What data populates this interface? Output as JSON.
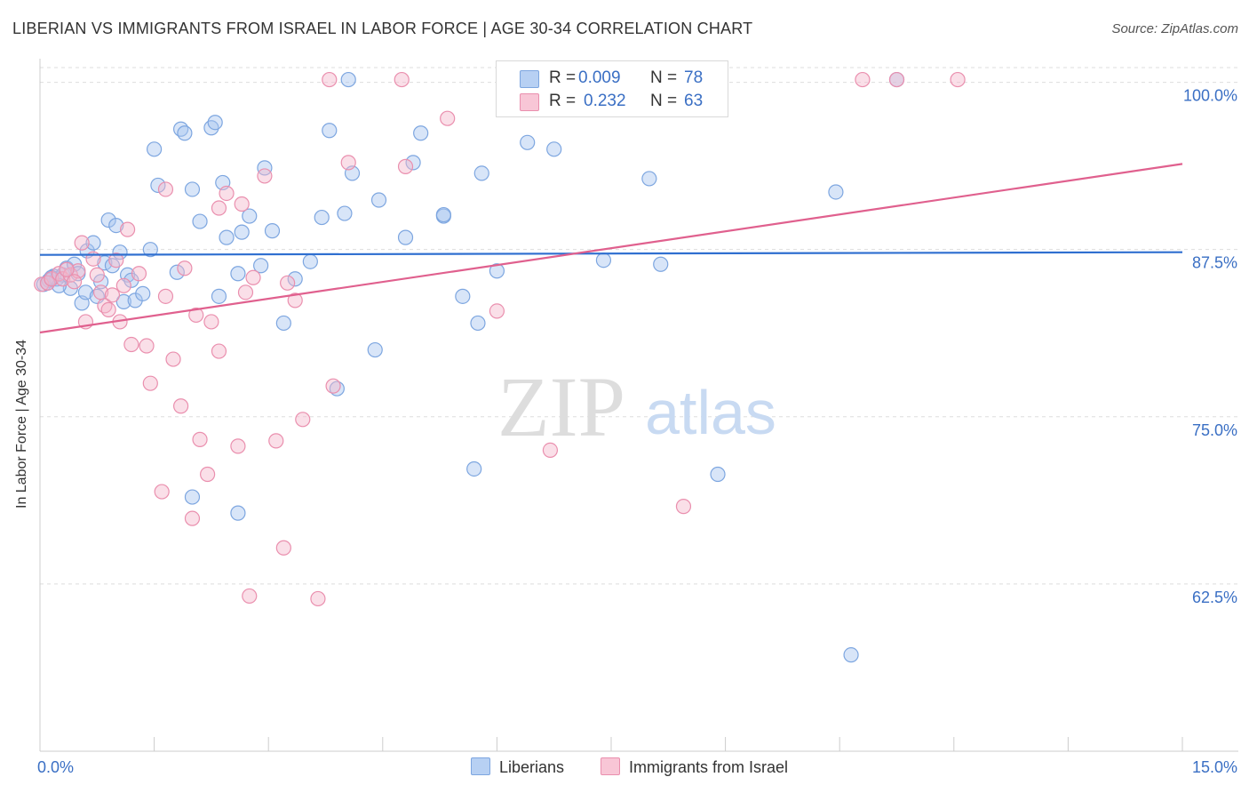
{
  "title": "LIBERIAN VS IMMIGRANTS FROM ISRAEL IN LABOR FORCE | AGE 30-34 CORRELATION CHART",
  "source": "Source: ZipAtlas.com",
  "watermark": {
    "zip": "ZIP",
    "atlas": "atlas"
  },
  "legend": {
    "r_label": "R =",
    "n_label": "N =",
    "series": [
      {
        "name": "Liberians",
        "r": "0.009",
        "n": "78"
      },
      {
        "name": "Immigrants from Israel",
        "r": "0.232",
        "n": "63"
      }
    ]
  },
  "colors": {
    "blue_fill": "#a9c6f0",
    "blue_stroke": "#7da6e0",
    "blue_line": "#2f6fd0",
    "pink_fill": "#f5b8cb",
    "pink_stroke": "#ea8fae",
    "pink_line": "#e0608e",
    "tick_label": "#3a6fc4",
    "grid": "#dddddd"
  },
  "chart_data": {
    "type": "scatter",
    "title": "LIBERIAN VS IMMIGRANTS FROM ISRAEL IN LABOR FORCE | AGE 30-34 CORRELATION CHART",
    "xlabel": "",
    "ylabel": "In Labor Force | Age 30-34",
    "xlim": [
      0,
      15
    ],
    "ylim": [
      50,
      101.5
    ],
    "x_tick_labels": [
      "0.0%",
      "15.0%"
    ],
    "y_ticks": [
      {
        "value": 62.5,
        "label": "62.5%"
      },
      {
        "value": 75.0,
        "label": "75.0%"
      },
      {
        "value": 87.5,
        "label": "87.5%"
      },
      {
        "value": 100.0,
        "label": "100.0%"
      }
    ],
    "series": [
      {
        "name": "Liberians",
        "color": "blue",
        "trend": {
          "x": [
            0,
            15
          ],
          "y": [
            87.1,
            87.3
          ]
        },
        "points": [
          [
            0.05,
            84.9
          ],
          [
            0.12,
            85.2
          ],
          [
            0.18,
            85.5
          ],
          [
            0.22,
            85.3
          ],
          [
            0.3,
            85.6
          ],
          [
            0.35,
            86.1
          ],
          [
            0.4,
            84.6
          ],
          [
            0.45,
            86.4
          ],
          [
            0.5,
            85.7
          ],
          [
            0.55,
            83.5
          ],
          [
            0.6,
            84.3
          ],
          [
            0.62,
            87.4
          ],
          [
            0.7,
            88.0
          ],
          [
            0.75,
            84.0
          ],
          [
            0.8,
            85.1
          ],
          [
            0.85,
            86.5
          ],
          [
            0.9,
            89.7
          ],
          [
            0.95,
            86.3
          ],
          [
            1.0,
            89.3
          ],
          [
            1.05,
            87.3
          ],
          [
            1.1,
            83.6
          ],
          [
            1.15,
            85.6
          ],
          [
            1.2,
            85.2
          ],
          [
            1.25,
            83.7
          ],
          [
            1.35,
            84.2
          ],
          [
            1.45,
            87.5
          ],
          [
            1.5,
            95.0
          ],
          [
            1.55,
            92.3
          ],
          [
            1.8,
            85.8
          ],
          [
            1.85,
            96.5
          ],
          [
            1.9,
            96.2
          ],
          [
            2.0,
            92.0
          ],
          [
            2.0,
            69.0
          ],
          [
            2.1,
            89.6
          ],
          [
            2.25,
            96.6
          ],
          [
            2.3,
            97.0
          ],
          [
            2.35,
            84.0
          ],
          [
            2.4,
            92.5
          ],
          [
            2.45,
            88.4
          ],
          [
            2.6,
            85.7
          ],
          [
            2.6,
            67.8
          ],
          [
            2.65,
            88.8
          ],
          [
            2.75,
            90.0
          ],
          [
            2.9,
            86.3
          ],
          [
            2.95,
            93.6
          ],
          [
            3.05,
            88.9
          ],
          [
            3.2,
            82.0
          ],
          [
            3.35,
            85.3
          ],
          [
            3.55,
            86.6
          ],
          [
            3.7,
            89.9
          ],
          [
            3.8,
            96.4
          ],
          [
            3.9,
            77.1
          ],
          [
            4.0,
            90.2
          ],
          [
            4.05,
            100.2
          ],
          [
            4.1,
            93.2
          ],
          [
            4.4,
            80.0
          ],
          [
            4.45,
            91.2
          ],
          [
            4.8,
            88.4
          ],
          [
            4.9,
            94.0
          ],
          [
            5.0,
            96.2
          ],
          [
            5.3,
            90.0
          ],
          [
            5.3,
            90.1
          ],
          [
            5.55,
            84.0
          ],
          [
            5.7,
            71.1
          ],
          [
            5.75,
            82.0
          ],
          [
            5.8,
            93.2
          ],
          [
            6.0,
            85.9
          ],
          [
            6.4,
            95.5
          ],
          [
            6.75,
            95.0
          ],
          [
            7.4,
            86.7
          ],
          [
            8.0,
            92.8
          ],
          [
            8.15,
            86.4
          ],
          [
            8.9,
            70.7
          ],
          [
            10.45,
            91.8
          ],
          [
            10.65,
            57.2
          ],
          [
            11.25,
            100.2
          ],
          [
            0.1,
            85.0
          ],
          [
            0.25,
            84.8
          ],
          [
            0.15,
            85.4
          ]
        ]
      },
      {
        "name": "Immigrants from Israel",
        "color": "pink",
        "trend": {
          "x": [
            0,
            15
          ],
          "y": [
            81.3,
            93.9
          ]
        },
        "points": [
          [
            0.02,
            84.9
          ],
          [
            0.1,
            85.0
          ],
          [
            0.15,
            85.3
          ],
          [
            0.25,
            85.7
          ],
          [
            0.3,
            85.3
          ],
          [
            0.4,
            85.6
          ],
          [
            0.5,
            85.9
          ],
          [
            0.55,
            88.0
          ],
          [
            0.6,
            82.1
          ],
          [
            0.7,
            86.8
          ],
          [
            0.75,
            85.6
          ],
          [
            0.8,
            84.3
          ],
          [
            0.85,
            83.3
          ],
          [
            0.9,
            83.0
          ],
          [
            0.95,
            84.1
          ],
          [
            1.0,
            86.7
          ],
          [
            1.05,
            82.1
          ],
          [
            1.1,
            84.8
          ],
          [
            1.15,
            89.0
          ],
          [
            1.2,
            80.4
          ],
          [
            1.3,
            85.7
          ],
          [
            1.4,
            80.3
          ],
          [
            1.45,
            77.5
          ],
          [
            1.6,
            69.4
          ],
          [
            1.65,
            84.0
          ],
          [
            1.65,
            92.0
          ],
          [
            1.75,
            79.3
          ],
          [
            1.85,
            75.8
          ],
          [
            1.9,
            86.1
          ],
          [
            2.0,
            67.4
          ],
          [
            2.05,
            82.6
          ],
          [
            2.1,
            73.3
          ],
          [
            2.2,
            70.7
          ],
          [
            2.25,
            82.1
          ],
          [
            2.35,
            79.9
          ],
          [
            2.35,
            90.6
          ],
          [
            2.45,
            91.7
          ],
          [
            2.6,
            72.8
          ],
          [
            2.65,
            90.9
          ],
          [
            2.7,
            84.3
          ],
          [
            2.75,
            61.6
          ],
          [
            2.8,
            85.4
          ],
          [
            2.95,
            93.0
          ],
          [
            3.1,
            73.2
          ],
          [
            3.2,
            65.2
          ],
          [
            3.25,
            85.0
          ],
          [
            3.35,
            83.7
          ],
          [
            3.45,
            74.8
          ],
          [
            3.65,
            61.4
          ],
          [
            3.8,
            100.2
          ],
          [
            3.85,
            77.3
          ],
          [
            4.05,
            94.0
          ],
          [
            4.75,
            100.2
          ],
          [
            4.8,
            93.7
          ],
          [
            5.35,
            97.3
          ],
          [
            6.7,
            72.5
          ],
          [
            8.45,
            68.3
          ],
          [
            10.8,
            100.2
          ],
          [
            11.25,
            100.2
          ],
          [
            12.05,
            100.2
          ],
          [
            6.0,
            82.9
          ],
          [
            0.35,
            86.0
          ],
          [
            0.45,
            85.1
          ]
        ]
      }
    ]
  }
}
